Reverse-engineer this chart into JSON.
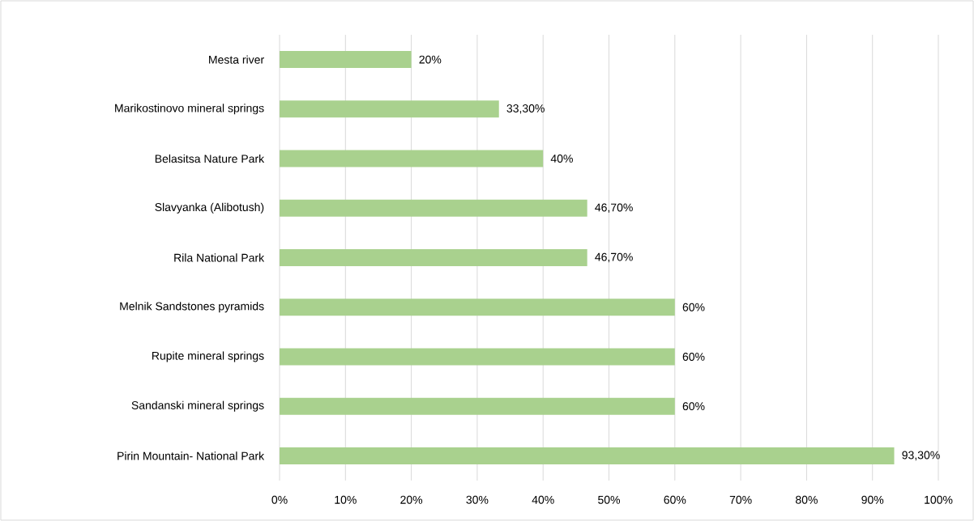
{
  "chart_data": {
    "type": "bar",
    "orientation": "horizontal",
    "categories": [
      "Mesta river",
      "Marikostinovo mineral springs",
      "Belasitsa Nature Park",
      "Slavyanka (Alibotush)",
      "Rila National Park",
      "Melnik Sandstones pyramids",
      "Rupite mineral springs",
      "Sandanski mineral springs",
      "Pirin Mountain- National Park"
    ],
    "values": [
      20,
      33.3,
      40,
      46.7,
      46.7,
      60,
      60,
      60,
      93.3
    ],
    "value_labels": [
      "20%",
      "33,30%",
      "40%",
      "46,70%",
      "46,70%",
      "60%",
      "60%",
      "60%",
      "93,30%"
    ],
    "color": "#a9d18e",
    "xlim": [
      0,
      100
    ],
    "xticks": [
      {
        "value": 0,
        "label": "0%"
      },
      {
        "value": 10,
        "label": "10%"
      },
      {
        "value": 20,
        "label": "20%"
      },
      {
        "value": 30,
        "label": "30%"
      },
      {
        "value": 40,
        "label": "40%"
      },
      {
        "value": 50,
        "label": "50%"
      },
      {
        "value": 60,
        "label": "60%"
      },
      {
        "value": 70,
        "label": "70%"
      },
      {
        "value": 80,
        "label": "80%"
      },
      {
        "value": 90,
        "label": "90%"
      },
      {
        "value": 100,
        "label": "100%"
      }
    ],
    "grid": "x"
  }
}
